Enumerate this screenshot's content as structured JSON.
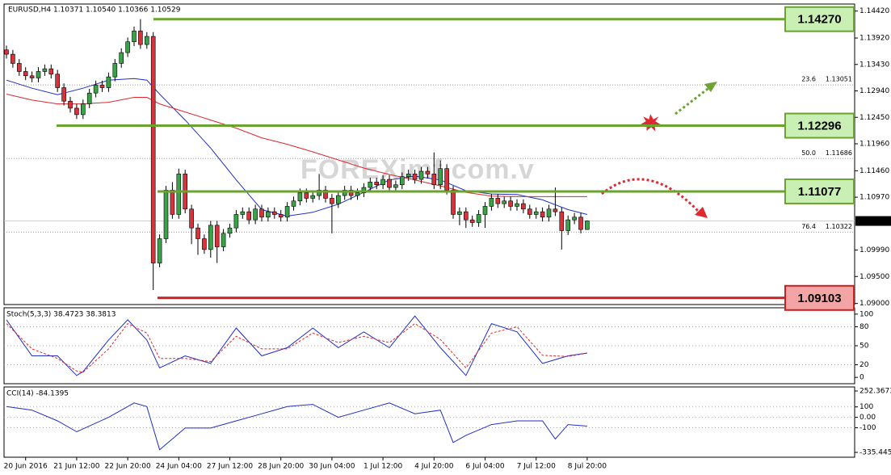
{
  "chart_data": {
    "type": "candlestick",
    "title": "EURUSD,H4  1.10371 1.10540 1.10366 1.10529",
    "watermark": "FOREXimf.com.v",
    "categories": [
      null,
      null,
      null,
      "20 Jun 2016",
      null,
      null,
      null,
      null,
      null,
      null,
      null,
      "21 Jun 12:00",
      null,
      null,
      null,
      null,
      null,
      null,
      null,
      "22 Jun 20:00",
      null,
      null,
      null,
      null,
      null,
      null,
      null,
      "24 Jun 04:00",
      null,
      null,
      null,
      null,
      null,
      null,
      null,
      "27 Jun 12:00",
      null,
      null,
      null,
      null,
      null,
      null,
      null,
      "28 Jun 20:00",
      null,
      null,
      null,
      null,
      null,
      null,
      null,
      "30 Jun 04:00",
      null,
      null,
      null,
      null,
      null,
      null,
      null,
      "1 Jul 12:00",
      null,
      null,
      null,
      null,
      null,
      null,
      null,
      "4 Jul 20:00",
      null,
      null,
      null,
      null,
      null,
      null,
      null,
      "6 Jul 04:00",
      null,
      null,
      null,
      null,
      null,
      null,
      null,
      "7 Jul 12:00",
      null,
      null,
      null,
      null,
      null,
      null,
      null,
      "8 Jul 20:00"
    ],
    "open": [
      1.137,
      1.1362,
      1.1345,
      1.133,
      1.1322,
      1.1318,
      1.133,
      1.1335,
      1.1325,
      1.13,
      1.1275,
      1.1262,
      1.125,
      1.127,
      1.129,
      1.1305,
      1.13,
      1.132,
      1.1345,
      1.1365,
      1.1385,
      1.1405,
      1.138,
      1.1395,
      1.0975,
      1.102,
      1.111,
      1.1065,
      1.114,
      1.1075,
      1.104,
      1.102,
      1.1,
      1.1045,
      1.1005,
      1.103,
      1.104,
      1.1065,
      1.107,
      1.1055,
      1.1075,
      1.106,
      1.107,
      1.1065,
      1.106,
      1.108,
      1.109,
      1.1105,
      1.1095,
      1.11,
      1.111,
      1.1095,
      1.1085,
      1.11,
      1.111,
      1.11,
      1.1105,
      1.1115,
      1.1125,
      1.112,
      1.113,
      1.1115,
      1.112,
      1.1135,
      1.114,
      1.113,
      1.1145,
      1.114,
      1.112,
      1.115,
      1.111,
      1.1065,
      1.107,
      1.1055,
      1.105,
      1.1065,
      1.108,
      1.1095,
      1.1085,
      1.109,
      1.108,
      1.1085,
      1.1075,
      1.1065,
      1.107,
      1.106,
      1.1075,
      1.107,
      1.1035,
      1.1055,
      1.106,
      1.10371
    ],
    "high": [
      1.1378,
      1.137,
      1.1353,
      1.1338,
      1.133,
      1.1338,
      1.1343,
      1.1343,
      1.1333,
      1.1308,
      1.1283,
      1.127,
      1.1278,
      1.1298,
      1.1313,
      1.1313,
      1.1328,
      1.1353,
      1.1373,
      1.1393,
      1.1413,
      1.1427,
      1.1403,
      1.1403,
      1.1028,
      1.1118,
      1.1125,
      1.115,
      1.1148,
      1.1083,
      1.1048,
      1.1028,
      1.1053,
      1.1053,
      1.1038,
      1.1048,
      1.1073,
      1.1078,
      1.1078,
      1.1083,
      1.1083,
      1.1078,
      1.1078,
      1.1073,
      1.1088,
      1.1098,
      1.1113,
      1.1113,
      1.1108,
      1.114,
      1.1118,
      1.1103,
      1.1108,
      1.1118,
      1.1118,
      1.1113,
      1.1123,
      1.1133,
      1.1133,
      1.1138,
      1.1138,
      1.1128,
      1.1143,
      1.1148,
      1.1148,
      1.1153,
      1.1153,
      1.118,
      1.1165,
      1.1158,
      1.1118,
      1.1078,
      1.1078,
      1.1063,
      1.1073,
      1.1088,
      1.1103,
      1.1103,
      1.1098,
      1.1098,
      1.1093,
      1.1093,
      1.1083,
      1.1078,
      1.1078,
      1.1083,
      1.1115,
      1.1078,
      1.1063,
      1.1068,
      1.1068,
      1.1054
    ],
    "low": [
      1.1354,
      1.1337,
      1.1322,
      1.1314,
      1.131,
      1.131,
      1.1322,
      1.1317,
      1.1292,
      1.1267,
      1.1254,
      1.1242,
      1.1242,
      1.1262,
      1.1282,
      1.1292,
      1.1292,
      1.1312,
      1.1337,
      1.1357,
      1.1377,
      1.1372,
      1.1372,
      1.0925,
      1.0967,
      1.1012,
      1.1057,
      1.1057,
      1.1067,
      1.101,
      1.099,
      1.0992,
      1.0985,
      1.0975,
      1.0997,
      1.1022,
      1.1032,
      1.1057,
      1.1047,
      1.1047,
      1.1052,
      1.1052,
      1.1057,
      1.1052,
      1.1052,
      1.1072,
      1.1082,
      1.1087,
      1.1087,
      1.1092,
      1.1087,
      1.103,
      1.1077,
      1.1092,
      1.1092,
      1.1092,
      1.1097,
      1.1107,
      1.1112,
      1.1112,
      1.1107,
      1.1107,
      1.1112,
      1.1127,
      1.1122,
      1.1122,
      1.1132,
      1.1112,
      1.1112,
      1.1102,
      1.1057,
      1.1045,
      1.104,
      1.1042,
      1.1042,
      1.104,
      1.1072,
      1.1077,
      1.1077,
      1.1072,
      1.1072,
      1.1067,
      1.1057,
      1.1057,
      1.1052,
      1.1052,
      1.1062,
      1.1,
      1.1027,
      1.1047,
      1.103,
      1.10366
    ],
    "close": [
      1.1362,
      1.1345,
      1.133,
      1.1322,
      1.1318,
      1.133,
      1.1335,
      1.1325,
      1.13,
      1.1275,
      1.1262,
      1.125,
      1.127,
      1.129,
      1.1305,
      1.13,
      1.132,
      1.1345,
      1.1365,
      1.1385,
      1.1405,
      1.138,
      1.1395,
      1.0975,
      1.102,
      1.111,
      1.1065,
      1.114,
      1.1075,
      1.104,
      1.102,
      1.1,
      1.1045,
      1.1005,
      1.103,
      1.104,
      1.1065,
      1.107,
      1.1055,
      1.1075,
      1.106,
      1.107,
      1.1065,
      1.106,
      1.108,
      1.109,
      1.1105,
      1.1095,
      1.11,
      1.111,
      1.1095,
      1.1085,
      1.11,
      1.111,
      1.11,
      1.1105,
      1.1115,
      1.1125,
      1.112,
      1.113,
      1.1115,
      1.112,
      1.1135,
      1.114,
      1.113,
      1.1145,
      1.114,
      1.112,
      1.115,
      1.111,
      1.1065,
      1.107,
      1.1055,
      1.105,
      1.1065,
      1.108,
      1.1095,
      1.1085,
      1.109,
      1.108,
      1.1085,
      1.1075,
      1.1065,
      1.107,
      1.106,
      1.1075,
      1.107,
      1.1035,
      1.1055,
      1.106,
      1.10371,
      1.10529
    ],
    "bull_color": "#3aa347",
    "bear_color": "#d8323a",
    "ylim": [
      1.0898,
      1.1455
    ],
    "yticks": [
      {
        "value": 1.1442,
        "label": "1.14420"
      },
      {
        "value": 1.1392,
        "label": "1.13920"
      },
      {
        "value": 1.1343,
        "label": "1.13430"
      },
      {
        "value": 1.1294,
        "label": "1.12940"
      },
      {
        "value": 1.1245,
        "label": "1.12450"
      },
      {
        "value": 1.1196,
        "label": "1.11960"
      },
      {
        "value": 1.1146,
        "label": "1.11460"
      },
      {
        "value": 1.1097,
        "label": "1.10970"
      },
      {
        "value": 1.0999,
        "label": "1.09990"
      },
      {
        "value": 1.095,
        "label": "1.09500"
      },
      {
        "value": 1.09,
        "label": "1.09000"
      }
    ],
    "moving_averages": [
      {
        "color": "#1f2fc8",
        "x": [
          0,
          4,
          8,
          12,
          16,
          20,
          22,
          24,
          28,
          32,
          36,
          40,
          44,
          48,
          52,
          56,
          60,
          64,
          68,
          72,
          76,
          80,
          84,
          88,
          91
        ],
        "values": [
          1.1314,
          1.1299,
          1.1287,
          1.1299,
          1.1314,
          1.1317,
          1.1314,
          1.1288,
          1.124,
          1.1188,
          1.1129,
          1.1074,
          1.1062,
          1.1069,
          1.1084,
          1.1106,
          1.1129,
          1.1136,
          1.1129,
          1.1109,
          1.1103,
          1.1102,
          1.1092,
          1.1074,
          1.1065
        ]
      },
      {
        "color": "#e0282e",
        "x": [
          0,
          4,
          8,
          12,
          16,
          20,
          22,
          24,
          28,
          32,
          36,
          40,
          44,
          48,
          52,
          56,
          60,
          64,
          68,
          72,
          76,
          80,
          84,
          88,
          91
        ],
        "values": [
          1.1288,
          1.1277,
          1.127,
          1.127,
          1.1273,
          1.1282,
          1.1282,
          1.127,
          1.1255,
          1.124,
          1.1225,
          1.1207,
          1.1195,
          1.1181,
          1.1166,
          1.1151,
          1.1139,
          1.1129,
          1.1118,
          1.1106,
          1.1099,
          1.1098,
          1.1098,
          1.1098,
          1.1098
        ]
      }
    ],
    "levels": [
      {
        "price": {
          "value": 1.1427,
          "label": "1.14270"
        },
        "color": "#6aa32e",
        "box_color": "#c9efb4"
      },
      {
        "price": {
          "value": 1.12296,
          "label": "1.12296"
        },
        "color": "#6aa32e",
        "box_color": "#c9efb4"
      },
      {
        "price": {
          "value": 1.11077,
          "label": "1.11077"
        },
        "color": "#6aa32e",
        "box_color": "#c9efb4"
      },
      {
        "price": {
          "value": 1.09103,
          "label": "1.09103"
        },
        "color": "#cc1f1f",
        "box_color": "#f3a5a5"
      }
    ],
    "fibs": [
      {
        "level": 23.6,
        "price": 1.13051
      },
      {
        "level": {
          "value": 50,
          "label": "50.0"
        },
        "price": 1.11686
      },
      {
        "level": 76.4,
        "price": 1.10322
      }
    ],
    "current_price": 1.10529,
    "indicators": [
      {
        "type": "stoch",
        "title": "Stoch(5,3,3) 38.4723 38.3813",
        "ylim": [
          -10,
          110
        ],
        "yticks": [
          100,
          80,
          50,
          20,
          0
        ],
        "series": [
          {
            "color": "#1f2fc8",
            "x": [
              0,
              4,
              8,
              11,
              12,
              16,
              19,
              22,
              24,
              28,
              32,
              36,
              40,
              44,
              48,
              52,
              56,
              60,
              64,
              68,
              72,
              76,
              80,
              84,
              88,
              91
            ],
            "values": [
              91,
              34,
              34,
              3,
              9,
              59,
              91,
              59,
              15,
              34,
              22,
              78,
              34,
              47,
              78,
              47,
              72,
              47,
              97,
              47,
              3,
              85,
              72,
              22,
              34,
              38.4723
            ]
          },
          {
            "color": "#e0282e",
            "dashed": true,
            "x": [
              0,
              4,
              8,
              11,
              12,
              16,
              19,
              22,
              24,
              28,
              32,
              36,
              40,
              44,
              48,
              52,
              56,
              60,
              64,
              68,
              72,
              76,
              80,
              84,
              88,
              91
            ],
            "values": [
              85,
              45,
              30,
              10,
              8,
              45,
              85,
              70,
              30,
              30,
              25,
              65,
              45,
              45,
              70,
              55,
              65,
              55,
              85,
              60,
              15,
              70,
              80,
              35,
              33,
              38.3813
            ]
          }
        ]
      },
      {
        "type": "cci",
        "title": "CCI(14) -84.1395",
        "ylim": [
          -335.4459,
          252.3673
        ],
        "yticks": [
          252.3673,
          100,
          {
            "value": 0,
            "label": "0.00"
          },
          -100,
          -335.4459
        ],
        "series": [
          {
            "color": "#1f2fc8",
            "x": [
              0,
              4,
              8,
              11,
              16,
              20,
              22,
              24,
              28,
              32,
              36,
              40,
              44,
              48,
              52,
              56,
              60,
              64,
              68,
              70,
              72,
              76,
              80,
              84,
              86,
              88,
              91
            ],
            "values": [
              103,
              69,
              -34,
              -138,
              0,
              138,
              103,
              -310,
              -103,
              -103,
              -34,
              34,
              103,
              124,
              0,
              69,
              138,
              34,
              69,
              -241,
              -172,
              -69,
              -34,
              -34,
              -207,
              -69,
              -84.1395
            ]
          }
        ]
      }
    ]
  }
}
